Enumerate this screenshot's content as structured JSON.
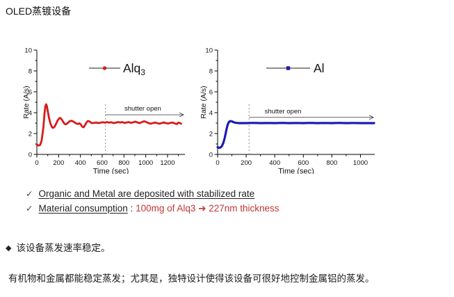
{
  "page": {
    "title": "OLED蒸镀设备"
  },
  "chart_data": [
    {
      "type": "line",
      "series_name": "Alq3",
      "legend_label": "Alq",
      "legend_subscript": "3",
      "marker": "circle",
      "color": "#d91a1a",
      "xlabel": "Time (sec)",
      "ylabel": "Rate (A/s)",
      "xlim": [
        0,
        1360
      ],
      "ylim": [
        0,
        10
      ],
      "xticks": [
        0,
        200,
        400,
        600,
        800,
        1000,
        1200
      ],
      "yticks": [
        0,
        2,
        4,
        6,
        8,
        10
      ],
      "x_minor_step": 100,
      "y_minor_step": 1,
      "shutter_line_x": 630,
      "shutter_line_top_y": 5.0,
      "annotation": {
        "text": "shutter open",
        "arrow_y": 3.8
      },
      "points": [
        [
          0,
          0.95
        ],
        [
          15,
          0.85
        ],
        [
          30,
          0.9
        ],
        [
          45,
          1.35
        ],
        [
          60,
          2.6
        ],
        [
          70,
          3.9
        ],
        [
          78,
          4.6
        ],
        [
          85,
          4.8
        ],
        [
          92,
          4.65
        ],
        [
          100,
          4.15
        ],
        [
          112,
          3.5
        ],
        [
          125,
          2.95
        ],
        [
          140,
          2.6
        ],
        [
          150,
          2.55
        ],
        [
          162,
          2.65
        ],
        [
          175,
          2.9
        ],
        [
          190,
          3.25
        ],
        [
          205,
          3.45
        ],
        [
          215,
          3.5
        ],
        [
          228,
          3.35
        ],
        [
          240,
          3.15
        ],
        [
          252,
          2.95
        ],
        [
          265,
          2.88
        ],
        [
          278,
          2.95
        ],
        [
          292,
          3.1
        ],
        [
          305,
          3.2
        ],
        [
          320,
          3.22
        ],
        [
          335,
          3.15
        ],
        [
          350,
          3.05
        ],
        [
          365,
          2.95
        ],
        [
          378,
          2.92
        ],
        [
          392,
          2.98
        ],
        [
          405,
          2.85
        ],
        [
          418,
          2.65
        ],
        [
          430,
          2.6
        ],
        [
          442,
          2.8
        ],
        [
          455,
          3.05
        ],
        [
          468,
          3.2
        ],
        [
          480,
          3.18
        ],
        [
          492,
          3.08
        ],
        [
          505,
          3.0
        ],
        [
          525,
          3.02
        ],
        [
          545,
          3.06
        ],
        [
          565,
          3.0
        ],
        [
          585,
          3.04
        ],
        [
          605,
          3.08
        ],
        [
          625,
          3.04
        ],
        [
          645,
          3.1
        ],
        [
          665,
          3.05
        ],
        [
          685,
          3.08
        ],
        [
          705,
          3.0
        ],
        [
          725,
          3.04
        ],
        [
          745,
          3.1
        ],
        [
          765,
          3.06
        ],
        [
          785,
          3.1
        ],
        [
          805,
          3.02
        ],
        [
          825,
          3.06
        ],
        [
          845,
          3.1
        ],
        [
          865,
          3.02
        ],
        [
          885,
          3.08
        ],
        [
          905,
          3.14
        ],
        [
          925,
          3.06
        ],
        [
          945,
          3.0
        ],
        [
          965,
          3.1
        ],
        [
          985,
          3.18
        ],
        [
          1005,
          3.1
        ],
        [
          1025,
          3.0
        ],
        [
          1045,
          2.95
        ],
        [
          1065,
          3.0
        ],
        [
          1085,
          3.05
        ],
        [
          1105,
          3.0
        ],
        [
          1125,
          2.95
        ],
        [
          1145,
          3.0
        ],
        [
          1165,
          3.06
        ],
        [
          1185,
          3.0
        ],
        [
          1205,
          2.96
        ],
        [
          1225,
          3.02
        ],
        [
          1245,
          3.06
        ],
        [
          1265,
          2.98
        ],
        [
          1285,
          2.9
        ],
        [
          1300,
          3.05
        ],
        [
          1315,
          3.0
        ],
        [
          1325,
          2.95
        ]
      ]
    },
    {
      "type": "line",
      "series_name": "Al",
      "legend_label": "Al",
      "legend_subscript": "",
      "marker": "square",
      "color": "#1c1cae",
      "xlabel": "Time (sec)",
      "ylabel": "Rate (A/s)",
      "xlim": [
        0,
        1100
      ],
      "ylim": [
        0,
        10
      ],
      "xticks": [
        0,
        200,
        400,
        600,
        800,
        1000
      ],
      "yticks": [
        0,
        2,
        4,
        6,
        8,
        10
      ],
      "x_minor_step": 100,
      "y_minor_step": 1,
      "shutter_line_x": 220,
      "shutter_line_top_y": 5.0,
      "annotation": {
        "text": "shutter open",
        "arrow_y": 3.55
      },
      "points": [
        [
          0,
          0.7
        ],
        [
          10,
          0.63
        ],
        [
          20,
          0.66
        ],
        [
          30,
          0.8
        ],
        [
          40,
          1.1
        ],
        [
          50,
          1.6
        ],
        [
          60,
          2.25
        ],
        [
          70,
          2.85
        ],
        [
          80,
          3.12
        ],
        [
          90,
          3.2
        ],
        [
          100,
          3.17
        ],
        [
          110,
          3.1
        ],
        [
          120,
          3.05
        ],
        [
          135,
          3.02
        ],
        [
          150,
          3.0
        ],
        [
          200,
          3.0
        ],
        [
          250,
          3.02
        ],
        [
          300,
          3.0
        ],
        [
          350,
          3.01
        ],
        [
          400,
          3.0
        ],
        [
          450,
          3.02
        ],
        [
          500,
          3.0
        ],
        [
          550,
          3.01
        ],
        [
          600,
          3.0
        ],
        [
          650,
          3.02
        ],
        [
          700,
          3.0
        ],
        [
          750,
          3.01
        ],
        [
          800,
          3.0
        ],
        [
          850,
          3.02
        ],
        [
          900,
          3.0
        ],
        [
          950,
          3.01
        ],
        [
          1000,
          3.0
        ],
        [
          1050,
          3.0
        ],
        [
          1095,
          3.0
        ]
      ]
    }
  ],
  "notes": {
    "highlight_color": "#c13434",
    "items": [
      {
        "check": "✓",
        "underlined": "Organic and Metal are deposited with stabilized rate",
        "separator": "",
        "highlight": ""
      },
      {
        "check": "✓",
        "underlined": "Material consumption",
        "separator": " : ",
        "highlight": "100mg of Alq3 ➔ 227nm thickness"
      }
    ]
  },
  "summary": {
    "bullet": "◆",
    "line1": "该设备蒸发速率稳定。",
    "paragraph": "有机物和金属都能稳定蒸发；尤其是，独特设计使得该设备可很好地控制金属铝的蒸发。"
  }
}
